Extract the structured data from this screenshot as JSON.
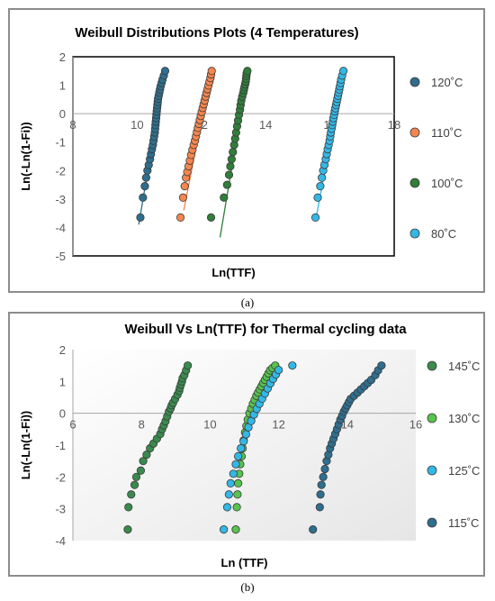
{
  "captions": {
    "a": "(a)",
    "b": "(b)"
  },
  "chart_data": [
    {
      "type": "scatter",
      "title": "Weibull Distributions Plots (4 Temperatures)",
      "xlabel": "Ln(TTF)",
      "ylabel": "Ln(-Ln(1-Fi))",
      "xlim": [
        8,
        18
      ],
      "ylim": [
        -5,
        2
      ],
      "xticks": [
        8,
        10,
        12,
        14,
        16,
        18
      ],
      "yticks": [
        -5,
        -4,
        -3,
        -2,
        -1,
        0,
        1,
        2
      ],
      "grid": false,
      "legend_position": "right",
      "series": [
        {
          "name": "120˚C",
          "color": "#2e6e8e",
          "x": [
            10.1,
            10.18,
            10.24,
            10.28,
            10.32,
            10.36,
            10.4,
            10.43,
            10.46,
            10.49,
            10.51,
            10.53,
            10.55,
            10.56,
            10.57,
            10.58,
            10.59,
            10.6,
            10.61,
            10.62,
            10.63,
            10.64,
            10.65,
            10.67,
            10.69,
            10.71,
            10.73,
            10.76,
            10.79,
            10.83,
            10.87
          ],
          "y": [
            -3.65,
            -2.95,
            -2.55,
            -2.25,
            -2.0,
            -1.8,
            -1.6,
            -1.42,
            -1.25,
            -1.1,
            -0.95,
            -0.8,
            -0.66,
            -0.53,
            -0.4,
            -0.28,
            -0.16,
            -0.04,
            0.08,
            0.19,
            0.3,
            0.41,
            0.52,
            0.63,
            0.74,
            0.85,
            0.96,
            1.08,
            1.2,
            1.34,
            1.5
          ]
        },
        {
          "name": "110˚C",
          "color": "#f4864f",
          "x": [
            11.35,
            11.43,
            11.48,
            11.52,
            11.56,
            11.6,
            11.64,
            11.68,
            11.72,
            11.76,
            11.8,
            11.83,
            11.86,
            11.89,
            11.92,
            11.95,
            11.98,
            12.01,
            12.04,
            12.07,
            12.1,
            12.13,
            12.16,
            12.19,
            12.22,
            12.25,
            12.28,
            12.3,
            12.32
          ],
          "y": [
            -3.65,
            -2.95,
            -2.55,
            -2.25,
            -2.05,
            -1.85,
            -1.65,
            -1.45,
            -1.27,
            -1.1,
            -0.95,
            -0.8,
            -0.65,
            -0.5,
            -0.36,
            -0.22,
            -0.08,
            0.06,
            0.2,
            0.33,
            0.46,
            0.6,
            0.73,
            0.86,
            0.99,
            1.12,
            1.25,
            1.38,
            1.5
          ]
        },
        {
          "name": "100˚C",
          "color": "#2f7e3a",
          "x": [
            12.3,
            12.7,
            12.8,
            12.86,
            12.9,
            12.94,
            12.98,
            13.02,
            13.05,
            13.08,
            13.11,
            13.14,
            13.17,
            13.2,
            13.22,
            13.24,
            13.27,
            13.3,
            13.32,
            13.34,
            13.36,
            13.38,
            13.39,
            13.4,
            13.41,
            13.43
          ],
          "y": [
            -3.65,
            -2.95,
            -2.5,
            -2.15,
            -1.85,
            -1.6,
            -1.35,
            -1.1,
            -0.88,
            -0.66,
            -0.44,
            -0.24,
            -0.04,
            0.14,
            0.3,
            0.45,
            0.6,
            0.72,
            0.83,
            0.93,
            1.03,
            1.13,
            1.23,
            1.33,
            1.42,
            1.5
          ]
        },
        {
          "name": "80˚C",
          "color": "#33b8e6",
          "x": [
            15.55,
            15.62,
            15.7,
            15.75,
            15.79,
            15.83,
            15.87,
            15.9,
            15.93,
            15.96,
            15.99,
            16.01,
            16.03,
            16.05,
            16.07,
            16.09,
            16.11,
            16.13,
            16.15,
            16.17,
            16.19,
            16.21,
            16.23,
            16.25,
            16.27,
            16.29,
            16.31,
            16.33,
            16.35,
            16.38,
            16.42
          ],
          "y": [
            -3.65,
            -2.95,
            -2.55,
            -2.25,
            -2.0,
            -1.8,
            -1.6,
            -1.42,
            -1.25,
            -1.1,
            -0.95,
            -0.8,
            -0.66,
            -0.53,
            -0.4,
            -0.28,
            -0.16,
            -0.04,
            0.08,
            0.19,
            0.3,
            0.41,
            0.52,
            0.63,
            0.74,
            0.85,
            0.96,
            1.08,
            1.2,
            1.34,
            1.5
          ]
        }
      ],
      "trendlines": [
        {
          "series": "120˚C",
          "x": [
            10.05,
            10.85
          ],
          "y": [
            -3.9,
            1.5
          ]
        },
        {
          "series": "110˚C",
          "x": [
            11.45,
            12.3
          ],
          "y": [
            -3.4,
            1.5
          ]
        },
        {
          "series": "100˚C",
          "x": [
            12.58,
            13.45
          ],
          "y": [
            -4.35,
            1.5
          ]
        },
        {
          "series": "80˚C",
          "x": [
            15.58,
            16.42
          ],
          "y": [
            -3.6,
            1.5
          ]
        }
      ]
    },
    {
      "type": "scatter",
      "title": "Weibull Vs Ln(TTF) for Thermal cycling data",
      "xlabel": "Ln (TTF)",
      "ylabel": "Ln(-Ln(1-Fi))",
      "xlim": [
        6,
        16
      ],
      "ylim": [
        -4,
        2
      ],
      "xticks": [
        6,
        8,
        10,
        12,
        14,
        16
      ],
      "yticks": [
        -4,
        -3,
        -2,
        -1,
        0,
        1,
        2
      ],
      "grid": false,
      "legend_position": "right",
      "series": [
        {
          "name": "145˚C",
          "color": "#3a8a4e",
          "x": [
            7.6,
            7.62,
            7.7,
            7.8,
            7.85,
            7.98,
            8.05,
            8.15,
            8.25,
            8.35,
            8.45,
            8.55,
            8.6,
            8.65,
            8.7,
            8.75,
            8.8,
            8.85,
            8.88,
            8.92,
            8.98,
            9.05,
            9.1,
            9.12,
            9.15,
            9.18,
            9.2,
            9.25,
            9.3,
            9.35
          ],
          "y": [
            -3.65,
            -2.95,
            -2.55,
            -2.25,
            -2.0,
            -1.8,
            -1.5,
            -1.3,
            -1.1,
            -0.95,
            -0.8,
            -0.65,
            -0.5,
            -0.38,
            -0.25,
            -0.1,
            0.05,
            0.15,
            0.25,
            0.33,
            0.45,
            0.58,
            0.7,
            0.8,
            0.9,
            1.0,
            1.1,
            1.2,
            1.35,
            1.5
          ]
        },
        {
          "name": "130˚C",
          "color": "#57c44f",
          "x": [
            10.75,
            10.78,
            10.8,
            10.82,
            10.85,
            10.88,
            10.92,
            10.95,
            10.98,
            11.02,
            11.06,
            11.1,
            11.15,
            11.2,
            11.25,
            11.3,
            11.35,
            11.4,
            11.45,
            11.5,
            11.55,
            11.6,
            11.65,
            11.7,
            11.75,
            11.82,
            11.9
          ],
          "y": [
            -3.65,
            -2.95,
            -2.55,
            -2.2,
            -1.9,
            -1.6,
            -1.35,
            -1.1,
            -0.85,
            -0.6,
            -0.4,
            -0.2,
            0.0,
            0.15,
            0.3,
            0.42,
            0.55,
            0.65,
            0.75,
            0.85,
            0.95,
            1.05,
            1.15,
            1.25,
            1.35,
            1.42,
            1.5
          ]
        },
        {
          "name": "125˚C",
          "color": "#33b8e6",
          "x": [
            10.4,
            10.5,
            10.55,
            10.6,
            10.68,
            10.75,
            10.82,
            10.9,
            10.98,
            11.05,
            11.12,
            11.2,
            11.28,
            11.36,
            11.44,
            11.52,
            11.6,
            11.68,
            11.76,
            11.84,
            11.92,
            12.0,
            12.4
          ],
          "y": [
            -3.65,
            -2.95,
            -2.55,
            -2.2,
            -1.9,
            -1.6,
            -1.35,
            -1.1,
            -0.88,
            -0.66,
            -0.44,
            -0.24,
            -0.04,
            0.14,
            0.3,
            0.46,
            0.62,
            0.78,
            0.94,
            1.08,
            1.22,
            1.36,
            1.5
          ]
        },
        {
          "name": "115˚C",
          "color": "#2e6e8e",
          "x": [
            13.0,
            13.2,
            13.22,
            13.25,
            13.3,
            13.35,
            13.4,
            13.45,
            13.5,
            13.55,
            13.6,
            13.65,
            13.7,
            13.75,
            13.8,
            13.85,
            13.9,
            13.95,
            14.0,
            14.05,
            14.1,
            14.2,
            14.3,
            14.4,
            14.5,
            14.6,
            14.7,
            14.82,
            14.9,
            15.0
          ],
          "y": [
            -3.65,
            -2.95,
            -2.55,
            -2.25,
            -2.0,
            -1.75,
            -1.5,
            -1.3,
            -1.1,
            -0.95,
            -0.8,
            -0.65,
            -0.5,
            -0.35,
            -0.2,
            -0.08,
            0.05,
            0.15,
            0.25,
            0.35,
            0.45,
            0.55,
            0.65,
            0.75,
            0.85,
            0.95,
            1.05,
            1.2,
            1.35,
            1.5
          ]
        }
      ]
    }
  ]
}
